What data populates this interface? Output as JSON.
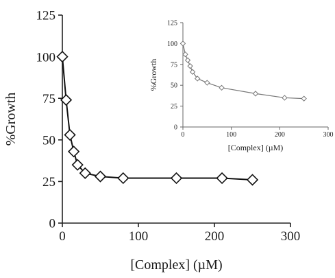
{
  "chart_data": [
    {
      "type": "line",
      "xlabel": "[Complex] (µM)",
      "ylabel": "%Growth",
      "xlim": [
        0,
        300
      ],
      "ylim": [
        0,
        125
      ],
      "xticks": [
        "0",
        "100",
        "200",
        "300"
      ],
      "yticks": [
        "0",
        "25",
        "50",
        "75",
        "100",
        "125"
      ],
      "grid": false,
      "marker": "diamond",
      "series": [
        {
          "x": [
            0,
            5,
            10,
            15,
            20,
            30,
            50,
            80,
            150,
            210,
            250
          ],
          "y": [
            100,
            74,
            53,
            43,
            35,
            30,
            28,
            27,
            27,
            27,
            26
          ]
        }
      ]
    },
    {
      "type": "line",
      "role": "inset",
      "xlabel": "[Complex] (µM)",
      "ylabel": "%Growth",
      "xlim": [
        0,
        300
      ],
      "ylim": [
        0,
        125
      ],
      "xticks": [
        "0",
        "100",
        "200",
        "300"
      ],
      "yticks": [
        "0",
        "25",
        "50",
        "75",
        "100",
        "125"
      ],
      "grid": false,
      "marker": "diamond",
      "series": [
        {
          "x": [
            0,
            5,
            10,
            15,
            20,
            30,
            50,
            80,
            150,
            210,
            250
          ],
          "y": [
            100,
            87,
            80,
            73,
            66,
            58,
            53,
            47,
            40,
            35,
            34
          ]
        }
      ]
    }
  ]
}
